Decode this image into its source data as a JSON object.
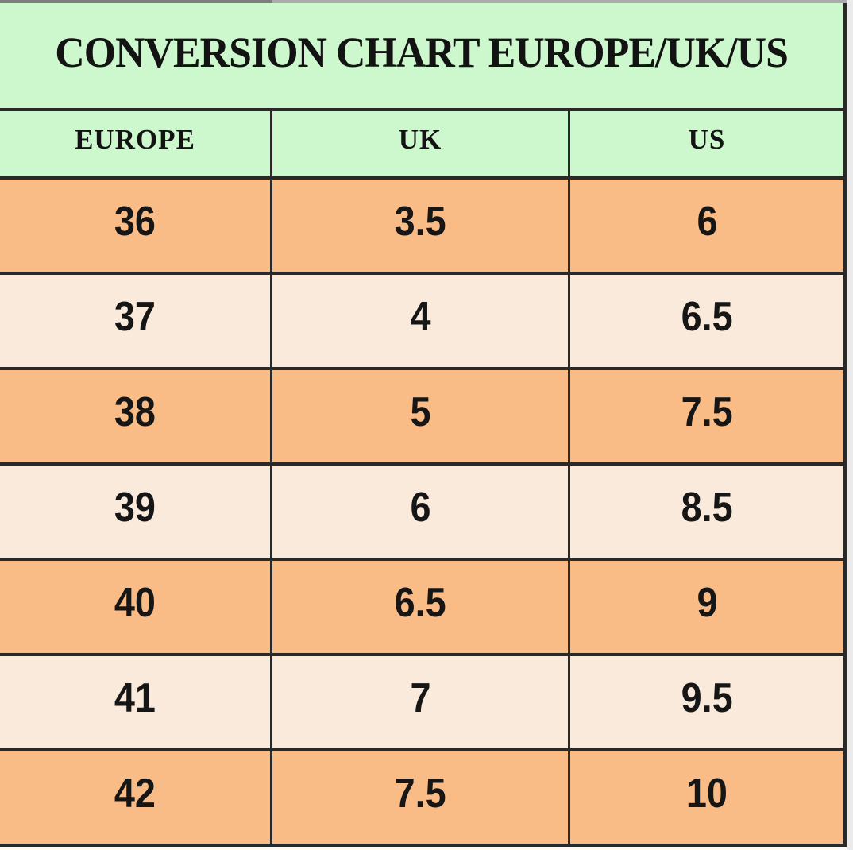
{
  "chart_data": {
    "type": "table",
    "title": "CONVERSION CHART EUROPE/UK/US",
    "headers": [
      "EUROPE",
      "UK",
      "US"
    ],
    "rows": [
      [
        "36",
        "3.5",
        "6"
      ],
      [
        "37",
        "4",
        "6.5"
      ],
      [
        "38",
        "5",
        "7.5"
      ],
      [
        "39",
        "6",
        "8.5"
      ],
      [
        "40",
        "6.5",
        "9"
      ],
      [
        "41",
        "7",
        "9.5"
      ],
      [
        "42",
        "7.5",
        "10"
      ]
    ],
    "row_striping": "alternating orange and peach, starting with orange",
    "colors": {
      "title_and_header_background": "#cdf8cd",
      "row_orange": "#f9bc87",
      "row_peach": "#faeadb",
      "border": "#2b2927",
      "text": "#131313"
    },
    "layout": {
      "grid_on": true,
      "column_count": 3,
      "header_font": "bold serif",
      "body_font": "bold condensed sans"
    }
  }
}
